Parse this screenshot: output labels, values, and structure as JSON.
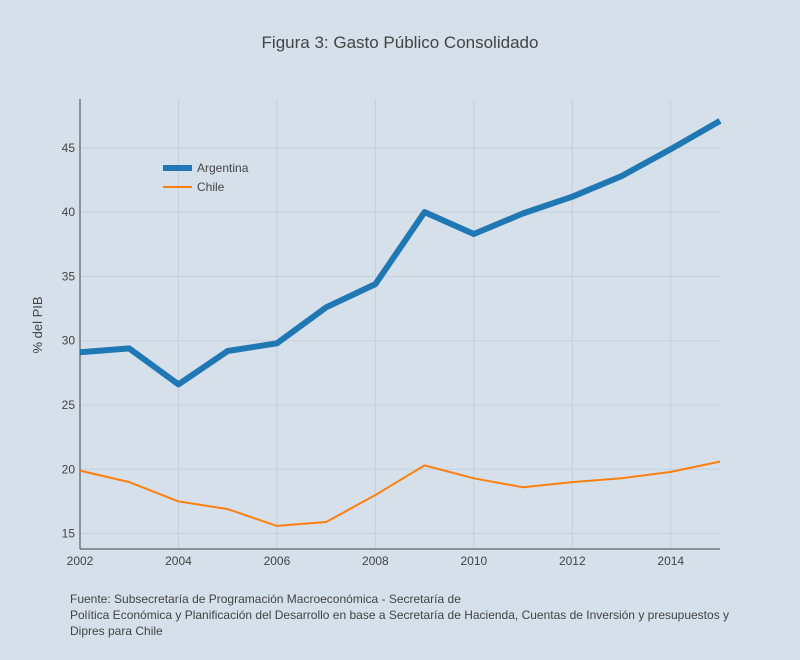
{
  "chart_data": {
    "type": "line",
    "title": "Figura 3: Gasto Público Consolidado",
    "xlabel": "",
    "ylabel": "% del PIB",
    "xlim": [
      2002,
      2015
    ],
    "ylim": [
      13.8,
      48.8
    ],
    "x_ticks": [
      2002,
      2004,
      2006,
      2008,
      2010,
      2012,
      2014
    ],
    "y_ticks": [
      15,
      20,
      25,
      30,
      35,
      40,
      45
    ],
    "grid": true,
    "legend_position": "top-left",
    "x": [
      2002,
      2003,
      2004,
      2005,
      2006,
      2007,
      2008,
      2009,
      2010,
      2011,
      2012,
      2013,
      2014,
      2015
    ],
    "series": [
      {
        "name": "Argentina",
        "color": "#1f77b4",
        "values": [
          29.1,
          29.4,
          26.6,
          29.2,
          29.8,
          32.6,
          34.4,
          40.0,
          38.3,
          39.9,
          41.2,
          42.8,
          44.9,
          47.1
        ]
      },
      {
        "name": "Chile",
        "color": "#ff7f0e",
        "values": [
          19.9,
          19.0,
          17.5,
          16.9,
          15.6,
          15.9,
          18.0,
          20.3,
          19.3,
          18.6,
          19.0,
          19.3,
          19.8,
          20.6
        ]
      }
    ]
  },
  "source": {
    "line1": "Fuente:   Subsecretaría de Programación Macroeconómica - Secretaría de",
    "line2": "Política Económica y Planificación del Desarrollo en base a Secretaría de Hacienda, Cuentas de Inversión y presupuestos y",
    "line3": "Dipres para Chile"
  }
}
